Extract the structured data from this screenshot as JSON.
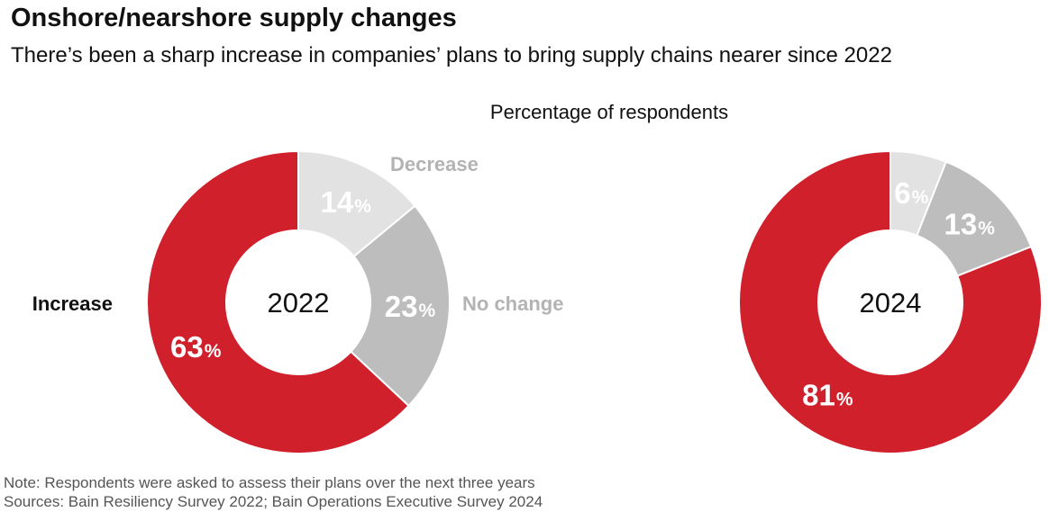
{
  "title": "Onshore/nearshore supply changes",
  "subtitle": "There’s been a sharp increase in companies’ plans to bring supply chains nearer since 2022",
  "axis_note": "Percentage of respondents",
  "notes": [
    "Note: Respondents were asked to assess their plans over the next three years",
    "Sources: Bain Resiliency Survey 2022; Bain Operations Executive Survey 2024"
  ],
  "colors": {
    "increase": "#d0202b",
    "decrease": "#e2e2e2",
    "no_change": "#bdbdbe",
    "label_increase": "#111111",
    "label_gray": "#b3b3b3"
  },
  "percent_symbol": "%",
  "chart_data": [
    {
      "type": "pie",
      "donut": true,
      "center_label": "2022",
      "categories": [
        "Decrease",
        "No change",
        "Increase"
      ],
      "values": [
        14,
        23,
        63
      ],
      "category_labels_visible": [
        "Decrease",
        "No change",
        "Increase"
      ]
    },
    {
      "type": "pie",
      "donut": true,
      "center_label": "2024",
      "categories": [
        "Decrease",
        "No change",
        "Increase"
      ],
      "values": [
        6,
        13,
        81
      ],
      "category_labels_visible": []
    }
  ]
}
